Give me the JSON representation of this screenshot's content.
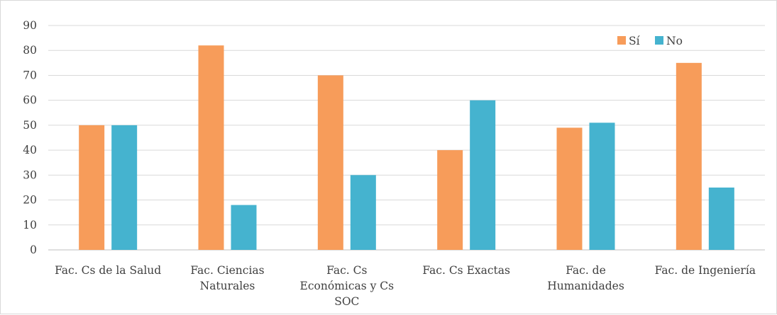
{
  "chart_data": {
    "type": "bar",
    "categories": [
      [
        "Fac. Cs de la Salud"
      ],
      [
        "Fac. Ciencias",
        "Naturales"
      ],
      [
        "Fac. Cs",
        "Económicas y Cs",
        "SOC"
      ],
      [
        "Fac. Cs Exactas"
      ],
      [
        "Fac. de",
        "Humanidades"
      ],
      [
        "Fac. de Ingeniería"
      ]
    ],
    "series": [
      {
        "name": "Sí",
        "color": "#f79c5a",
        "values": [
          50,
          82,
          70,
          40,
          49,
          75
        ]
      },
      {
        "name": "No",
        "color": "#45b3cf",
        "values": [
          50,
          18,
          30,
          60,
          51,
          25
        ]
      }
    ],
    "yticks": [
      "0",
      "10",
      "20",
      "30",
      "40",
      "50",
      "60",
      "70",
      "80",
      "90"
    ],
    "ylim": [
      0,
      90
    ],
    "grid": true,
    "legend": "top-right",
    "title": "",
    "xlabel": "",
    "ylabel": ""
  }
}
